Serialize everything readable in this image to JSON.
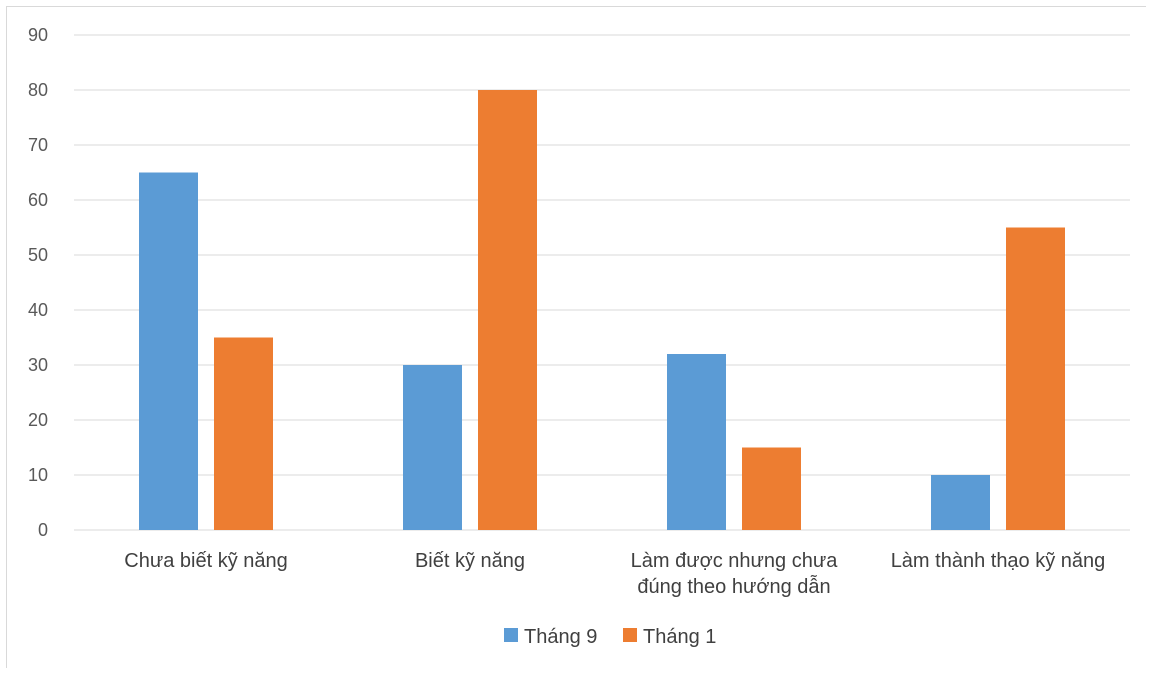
{
  "chart_data": {
    "type": "bar",
    "title": "",
    "xlabel": "",
    "ylabel": "",
    "categories": [
      [
        "Chưa biết kỹ năng"
      ],
      [
        "Biết kỹ năng"
      ],
      [
        "Làm được nhưng chưa",
        "đúng theo hướng dẫn"
      ],
      [
        "Làm thành thạo kỹ năng"
      ]
    ],
    "series": [
      {
        "name": "Tháng 9",
        "color": "#5b9bd5",
        "values": [
          65,
          30,
          32,
          10
        ]
      },
      {
        "name": "Tháng 1",
        "color": "#ed7d31",
        "values": [
          35,
          80,
          15,
          55
        ]
      }
    ],
    "ylim": [
      0,
      90
    ],
    "yticks": [
      0,
      10,
      20,
      30,
      40,
      50,
      60,
      70,
      80,
      90
    ],
    "grid": true,
    "legend_position": "bottom"
  }
}
